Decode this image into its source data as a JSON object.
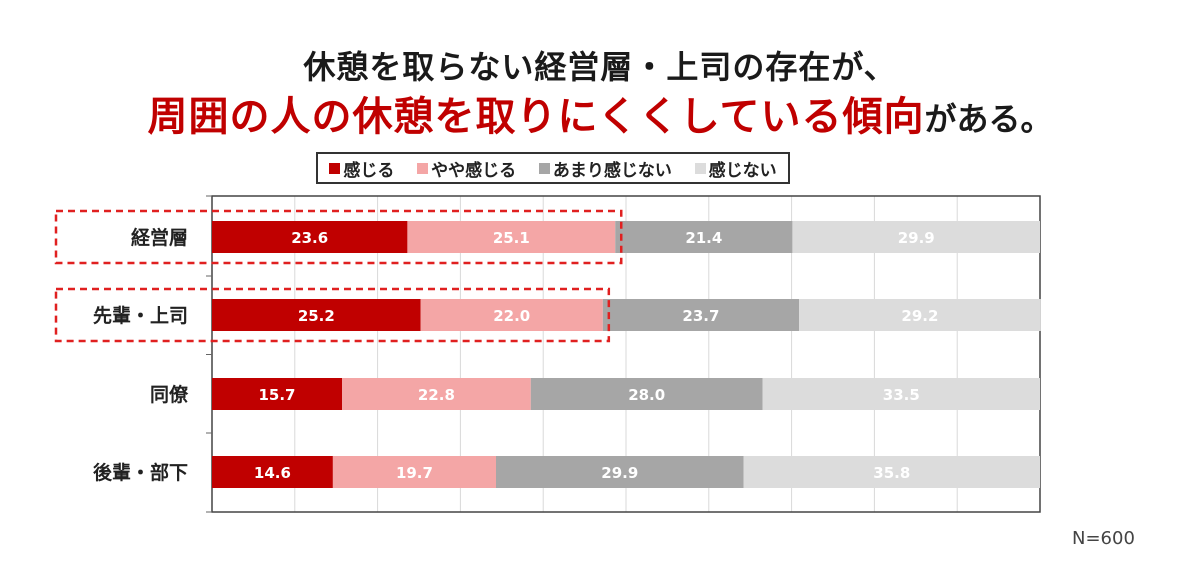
{
  "title": {
    "line1": "休憩を取らない経営層・上司の存在が、",
    "line2_highlight": "周囲の人の休憩を取りにくくしている傾向",
    "line2_tail": "がある。"
  },
  "note": "N=600",
  "colors": {
    "series": [
      "#c00000",
      "#f4a6a6",
      "#a6a6a6",
      "#dcdcdc"
    ],
    "highlight_box": "#e02020",
    "title_accent": "#c00000"
  },
  "chart_data": {
    "type": "bar",
    "orientation": "horizontal",
    "stacked": true,
    "categories": [
      "経営層",
      "先輩・上司",
      "同僚",
      "後輩・部下"
    ],
    "series": [
      {
        "name": "感じる",
        "values": [
          23.6,
          25.2,
          15.7,
          14.6
        ]
      },
      {
        "name": "やや感じる",
        "values": [
          25.1,
          22.0,
          22.8,
          19.7
        ]
      },
      {
        "name": "あまり感じない",
        "values": [
          21.4,
          23.7,
          28.0,
          29.9
        ]
      },
      {
        "name": "感じない",
        "values": [
          29.9,
          29.2,
          33.5,
          35.8
        ]
      }
    ],
    "xlim": [
      0,
      100
    ],
    "grid": true,
    "legend": "top",
    "highlighted_categories": [
      "経営層",
      "先輩・上司"
    ]
  }
}
